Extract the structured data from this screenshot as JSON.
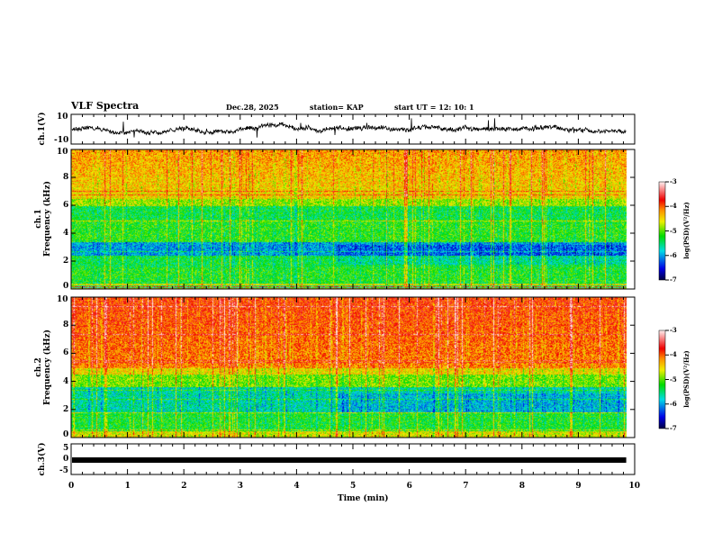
{
  "header": {
    "title": "VLF Spectra",
    "date": "Dec.28, 2025",
    "station": "station= KAP",
    "start": "start  UT  =   12: 10: 1"
  },
  "chart_data": {
    "type": "heatmap",
    "x_label": "Time  (min)",
    "x_range": [
      0,
      10
    ],
    "x_ticks": [
      "0",
      "1",
      "2",
      "3",
      "4",
      "5",
      "6",
      "7",
      "8",
      "9",
      "10"
    ],
    "data_end_min": 9.85,
    "panels": [
      {
        "name": "ch1_waveform",
        "type": "line",
        "ylabel": "ch.1(V)",
        "ylim": [
          -10,
          10
        ],
        "y_ticks": [
          "10",
          "-10"
        ]
      },
      {
        "name": "ch1_spectrogram",
        "type": "heatmap",
        "ylabel": "ch.1\nFrequency (kHz)",
        "ylabel_top": "ch.1",
        "ylabel_bottom": "Frequency (kHz)",
        "ylim": [
          0,
          10
        ],
        "y_ticks": [
          "0",
          "2",
          "4",
          "6",
          "8",
          "10"
        ],
        "colorbar": {
          "label": "log(PSD)(V²/Hz)",
          "range": [
            -7,
            -3
          ],
          "ticks": [
            "-3",
            "-4",
            "-5",
            "-6",
            "-7"
          ]
        }
      },
      {
        "name": "ch2_spectrogram",
        "type": "heatmap",
        "ylabel_top": "ch.2",
        "ylabel_bottom": "Frequency (kHz)",
        "ylim": [
          0,
          10
        ],
        "y_ticks": [
          "0",
          "2",
          "4",
          "6",
          "8",
          "10"
        ],
        "colorbar": {
          "label": "log(PSD)(V²/Hz)",
          "range": [
            -7,
            -3
          ],
          "ticks": [
            "-3",
            "-4",
            "-5",
            "-6",
            "-7"
          ]
        }
      },
      {
        "name": "ch3_waveform",
        "type": "line",
        "ylabel": "ch.3(V)",
        "ylim": [
          -5,
          5
        ],
        "y_ticks": [
          "5",
          "0",
          "-5"
        ],
        "approx_level": 0
      }
    ]
  }
}
